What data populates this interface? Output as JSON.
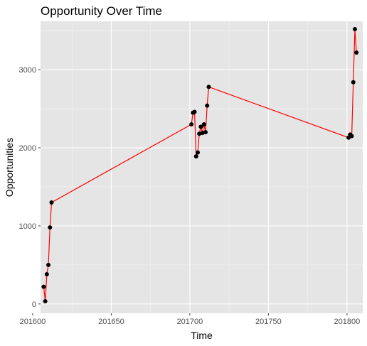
{
  "chart_data": {
    "type": "line",
    "title": "Opportunity Over Time",
    "xlabel": "Time",
    "ylabel": "Opportunities",
    "xlim": [
      201605,
      201810
    ],
    "ylim": [
      -120,
      3620
    ],
    "x_ticks": [
      201600,
      201650,
      201700,
      201750,
      201800
    ],
    "x_tick_labels": [
      "201600",
      "201650",
      "201700",
      "201750",
      "201800"
    ],
    "y_ticks": [
      0,
      1000,
      2000,
      3000
    ],
    "y_tick_labels": [
      "0",
      "1000",
      "2000",
      "3000"
    ],
    "grid": true,
    "legend": "none",
    "colors": {
      "panel_background": "#e5e5e5",
      "grid_major": "#ffffff",
      "grid_minor": "#f2f2f2",
      "line": "#ff0000",
      "points": "#000000"
    },
    "series": [
      {
        "x": [
          201607,
          201608,
          201609,
          201610,
          201611,
          201612,
          201701,
          201702,
          201703,
          201704,
          201705,
          201706,
          201707,
          201708,
          201709,
          201710,
          201711,
          201712,
          201801,
          201802,
          201803,
          201804,
          201805,
          201806
        ],
        "y": [
          220,
          35,
          380,
          500,
          980,
          1300,
          2300,
          2450,
          2460,
          1890,
          1940,
          2180,
          2270,
          2190,
          2300,
          2200,
          2540,
          2780,
          2130,
          2170,
          2150,
          2840,
          3520,
          3220
        ]
      }
    ]
  }
}
